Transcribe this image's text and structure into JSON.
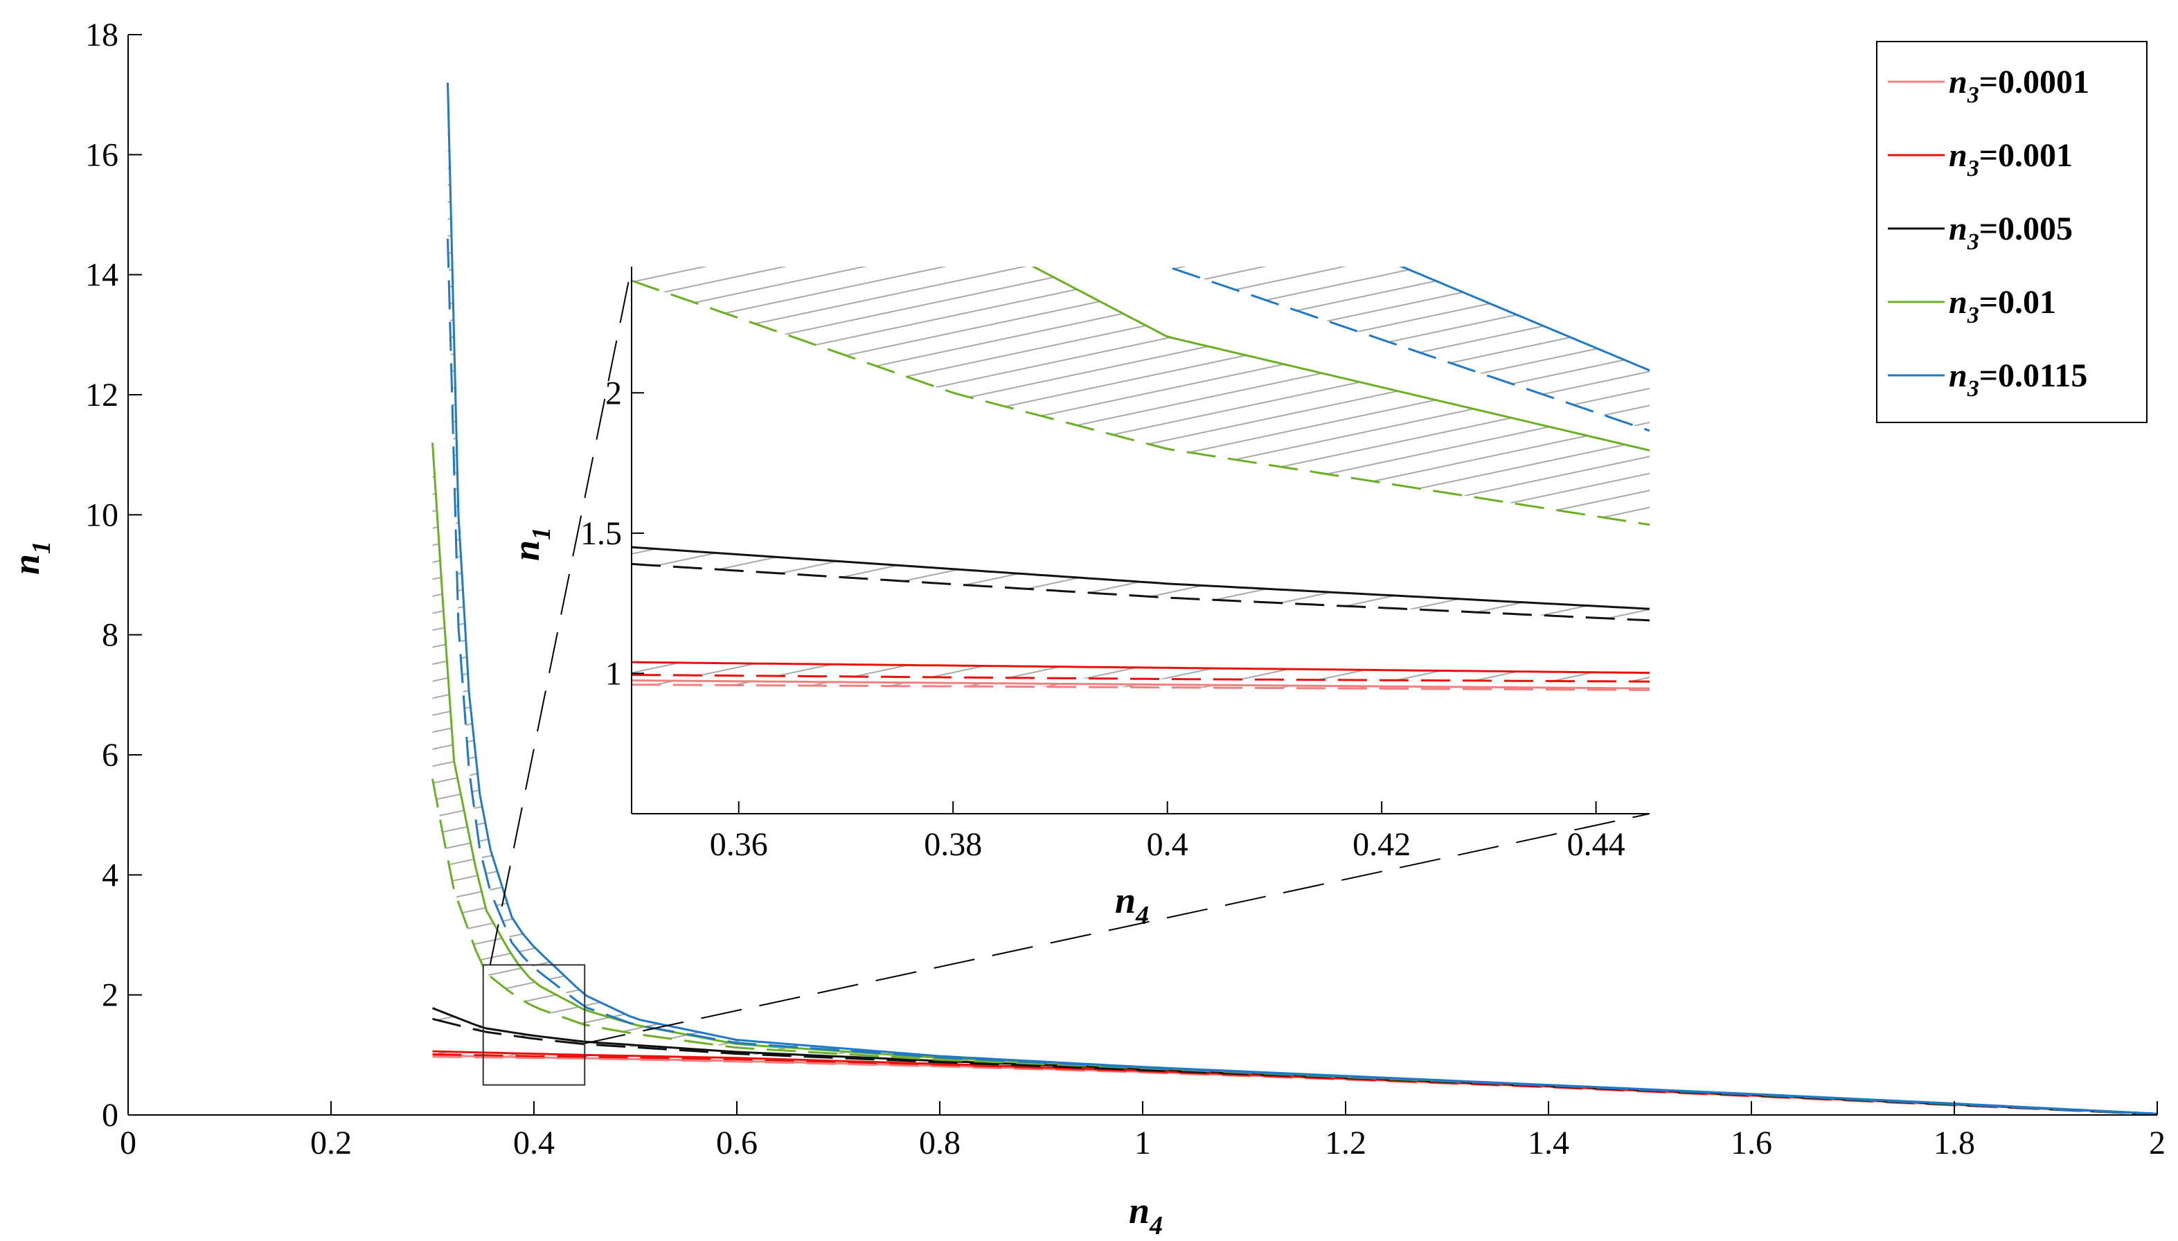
{
  "chart_data": [
    {
      "type": "line",
      "name": "main",
      "xlabel": "n",
      "xlabel_sub": "4",
      "ylabel": "n",
      "ylabel_sub": "1",
      "xlim": [
        0,
        2
      ],
      "ylim": [
        0,
        18
      ],
      "xticks": [
        0,
        0.2,
        0.4,
        0.6,
        0.8,
        1,
        1.2,
        1.4,
        1.6,
        1.8,
        2
      ],
      "xtick_labels": [
        "0",
        "0.2",
        "0.4",
        "0.6",
        "0.8",
        "1",
        "1.2",
        "1.4",
        "1.6",
        "1.8",
        "2"
      ],
      "yticks": [
        0,
        2,
        4,
        6,
        8,
        10,
        12,
        14,
        16,
        18
      ],
      "ytick_labels": [
        "0",
        "2",
        "4",
        "6",
        "8",
        "10",
        "12",
        "14",
        "16",
        "18"
      ],
      "grid": false,
      "legend_position": "top-right",
      "zoom_box": {
        "x": [
          0.35,
          0.45
        ],
        "y": [
          0.5,
          2.5
        ]
      },
      "series": [
        {
          "name_main": "n",
          "name_sub": "3",
          "name_value": "=0.0001",
          "color": "#f08080",
          "upper": {
            "x": [
              0.3,
              0.35,
              0.4,
              0.45,
              0.6,
              0.8,
              1.0,
              1.2,
              1.4,
              1.6,
              1.8,
              2.0
            ],
            "y": [
              0.99,
              0.975,
              0.96,
              0.945,
              0.9,
              0.82,
              0.72,
              0.6,
              0.47,
              0.32,
              0.17,
              0.02
            ]
          },
          "lower": {
            "x": [
              0.3,
              0.35,
              0.4,
              0.45,
              0.6,
              0.8,
              1.0,
              1.2,
              1.4,
              1.6,
              1.8,
              2.0
            ],
            "y": [
              0.97,
              0.96,
              0.95,
              0.94,
              0.89,
              0.81,
              0.71,
              0.59,
              0.46,
              0.31,
              0.16,
              0.01
            ]
          }
        },
        {
          "name_main": "n",
          "name_sub": "3",
          "name_value": "=0.001",
          "color": "#e8120c",
          "upper": {
            "x": [
              0.3,
              0.35,
              0.4,
              0.45,
              0.6,
              0.8,
              1.0,
              1.2,
              1.4,
              1.6,
              1.8,
              2.0
            ],
            "y": [
              1.06,
              1.04,
              1.02,
              1.0,
              0.95,
              0.85,
              0.74,
              0.61,
              0.48,
              0.33,
              0.18,
              0.02
            ]
          },
          "lower": {
            "x": [
              0.3,
              0.35,
              0.4,
              0.45,
              0.6,
              0.8,
              1.0,
              1.2,
              1.4,
              1.6,
              1.8,
              2.0
            ],
            "y": [
              1.01,
              0.995,
              0.98,
              0.97,
              0.93,
              0.84,
              0.73,
              0.6,
              0.47,
              0.32,
              0.17,
              0.01
            ]
          }
        },
        {
          "name_main": "n",
          "name_sub": "3",
          "name_value": "=0.005",
          "color": "#111111",
          "upper": {
            "x": [
              0.3,
              0.35,
              0.4,
              0.45,
              0.6,
              0.8,
              1.0,
              1.2,
              1.4,
              1.6,
              1.8,
              2.0
            ],
            "y": [
              1.78,
              1.45,
              1.32,
              1.22,
              1.05,
              0.9,
              0.77,
              0.63,
              0.49,
              0.34,
              0.18,
              0.02
            ]
          },
          "lower": {
            "x": [
              0.3,
              0.35,
              0.4,
              0.45,
              0.6,
              0.8,
              1.0,
              1.2,
              1.4,
              1.6,
              1.8,
              2.0
            ],
            "y": [
              1.6,
              1.39,
              1.27,
              1.18,
              1.02,
              0.88,
              0.75,
              0.62,
              0.48,
              0.33,
              0.17,
              0.01
            ]
          }
        },
        {
          "name_main": "n",
          "name_sub": "3",
          "name_value": "=0.01",
          "color": "#6ab023",
          "upper": {
            "x": [
              0.3,
              0.32,
              0.35,
              0.38,
              0.4,
              0.45,
              0.5,
              0.6,
              0.8,
              1.0,
              1.2,
              1.4,
              1.6,
              1.8,
              2.0
            ],
            "y": [
              11.2,
              6.0,
              3.5,
              2.6,
              2.2,
              1.75,
              1.5,
              1.18,
              0.95,
              0.79,
              0.64,
              0.5,
              0.35,
              0.19,
              0.02
            ]
          },
          "lower": {
            "x": [
              0.3,
              0.32,
              0.35,
              0.38,
              0.4,
              0.45,
              0.5,
              0.6,
              0.8,
              1.0,
              1.2,
              1.4,
              1.6,
              1.8,
              2.0
            ],
            "y": [
              5.6,
              3.8,
              2.4,
              2.0,
              1.8,
              1.5,
              1.35,
              1.12,
              0.92,
              0.78,
              0.63,
              0.49,
              0.34,
              0.18,
              0.01
            ]
          }
        },
        {
          "name_main": "n",
          "name_sub": "3",
          "name_value": "=0.0115",
          "color": "#1f78c8",
          "upper": {
            "x": [
              0.315,
              0.32,
              0.33,
              0.35,
              0.38,
              0.4,
              0.45,
              0.5,
              0.6,
              0.8,
              1.0,
              1.2,
              1.4,
              1.6,
              1.8,
              2.0
            ],
            "y": [
              17.2,
              12.5,
              8.0,
              4.8,
              3.2,
              2.8,
              2.0,
              1.6,
              1.25,
              0.98,
              0.8,
              0.65,
              0.5,
              0.35,
              0.19,
              0.02
            ]
          },
          "lower": {
            "x": [
              0.315,
              0.32,
              0.33,
              0.35,
              0.38,
              0.4,
              0.45,
              0.5,
              0.6,
              0.8,
              1.0,
              1.2,
              1.4,
              1.6,
              1.8,
              2.0
            ],
            "y": [
              14.6,
              10.2,
              6.5,
              4.0,
              2.8,
              2.45,
              1.8,
              1.5,
              1.2,
              0.96,
              0.79,
              0.64,
              0.49,
              0.34,
              0.18,
              0.01
            ]
          }
        }
      ]
    },
    {
      "type": "line",
      "name": "inset",
      "xlabel": "n",
      "xlabel_sub": "4",
      "ylabel": "n",
      "ylabel_sub": "1",
      "xlim": [
        0.35,
        0.445
      ],
      "ylim": [
        0.5,
        2.45
      ],
      "xticks": [
        0.36,
        0.38,
        0.4,
        0.42,
        0.44
      ],
      "xtick_labels": [
        "0.36",
        "0.38",
        "0.4",
        "0.42",
        "0.44"
      ],
      "yticks": [
        1,
        1.5,
        2
      ],
      "ytick_labels": [
        "1",
        "1.5",
        "2"
      ],
      "grid": false
    }
  ]
}
